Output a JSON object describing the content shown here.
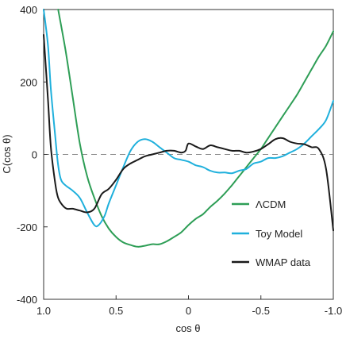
{
  "chart_data": {
    "type": "line",
    "title": "",
    "xlabel": "cos θ",
    "ylabel": "C(cos θ)",
    "xlim": [
      1.0,
      -1.0
    ],
    "ylim": [
      -400,
      400
    ],
    "x_reversed": true,
    "xticks": [
      {
        "value": 1.0,
        "label": "1.0"
      },
      {
        "value": 0.5,
        "label": "0.5"
      },
      {
        "value": 0.0,
        "label": "0"
      },
      {
        "value": -0.5,
        "label": "-0.5"
      },
      {
        "value": -1.0,
        "label": "-1.0"
      }
    ],
    "yticks": [
      {
        "value": 400,
        "label": "400"
      },
      {
        "value": 200,
        "label": "200"
      },
      {
        "value": 0,
        "label": "0"
      },
      {
        "value": -200,
        "label": "-200"
      },
      {
        "value": -400,
        "label": "-400"
      }
    ],
    "zero_line": {
      "style": "dashed"
    },
    "legend_position": "lower-right",
    "grid": false,
    "series": [
      {
        "name": "ΛCDM",
        "color": "#2e9e56",
        "points": [
          [
            0.9,
            400
          ],
          [
            0.85,
            290
          ],
          [
            0.8,
            160
          ],
          [
            0.75,
            30
          ],
          [
            0.7,
            -60
          ],
          [
            0.65,
            -120
          ],
          [
            0.6,
            -170
          ],
          [
            0.55,
            -205
          ],
          [
            0.5,
            -228
          ],
          [
            0.45,
            -243
          ],
          [
            0.4,
            -250
          ],
          [
            0.35,
            -255
          ],
          [
            0.3,
            -252
          ],
          [
            0.25,
            -248
          ],
          [
            0.2,
            -248
          ],
          [
            0.15,
            -240
          ],
          [
            0.1,
            -228
          ],
          [
            0.05,
            -215
          ],
          [
            0.0,
            -195
          ],
          [
            -0.05,
            -178
          ],
          [
            -0.1,
            -165
          ],
          [
            -0.15,
            -145
          ],
          [
            -0.2,
            -128
          ],
          [
            -0.25,
            -108
          ],
          [
            -0.3,
            -85
          ],
          [
            -0.35,
            -60
          ],
          [
            -0.4,
            -35
          ],
          [
            -0.45,
            -10
          ],
          [
            -0.5,
            15
          ],
          [
            -0.55,
            45
          ],
          [
            -0.6,
            75
          ],
          [
            -0.65,
            105
          ],
          [
            -0.7,
            135
          ],
          [
            -0.75,
            165
          ],
          [
            -0.8,
            200
          ],
          [
            -0.85,
            235
          ],
          [
            -0.9,
            270
          ],
          [
            -0.95,
            300
          ],
          [
            -1.0,
            340
          ]
        ]
      },
      {
        "name": "Toy Model",
        "color": "#1fb0dc",
        "points": [
          [
            1.0,
            400
          ],
          [
            0.97,
            300
          ],
          [
            0.95,
            180
          ],
          [
            0.92,
            50
          ],
          [
            0.9,
            -30
          ],
          [
            0.88,
            -70
          ],
          [
            0.85,
            -85
          ],
          [
            0.8,
            -100
          ],
          [
            0.75,
            -120
          ],
          [
            0.7,
            -160
          ],
          [
            0.65,
            -195
          ],
          [
            0.62,
            -195
          ],
          [
            0.58,
            -170
          ],
          [
            0.55,
            -135
          ],
          [
            0.5,
            -85
          ],
          [
            0.45,
            -35
          ],
          [
            0.4,
            10
          ],
          [
            0.35,
            35
          ],
          [
            0.3,
            42
          ],
          [
            0.25,
            35
          ],
          [
            0.2,
            20
          ],
          [
            0.15,
            5
          ],
          [
            0.1,
            -10
          ],
          [
            0.05,
            -15
          ],
          [
            0.0,
            -20
          ],
          [
            -0.05,
            -30
          ],
          [
            -0.1,
            -35
          ],
          [
            -0.15,
            -45
          ],
          [
            -0.2,
            -50
          ],
          [
            -0.25,
            -50
          ],
          [
            -0.3,
            -52
          ],
          [
            -0.35,
            -45
          ],
          [
            -0.4,
            -40
          ],
          [
            -0.45,
            -25
          ],
          [
            -0.5,
            -20
          ],
          [
            -0.55,
            -10
          ],
          [
            -0.6,
            -10
          ],
          [
            -0.65,
            -5
          ],
          [
            -0.7,
            5
          ],
          [
            -0.75,
            15
          ],
          [
            -0.8,
            30
          ],
          [
            -0.85,
            50
          ],
          [
            -0.9,
            70
          ],
          [
            -0.95,
            95
          ],
          [
            -1.0,
            148
          ]
        ]
      },
      {
        "name": "WMAP data",
        "color": "#1a1a1a",
        "points": [
          [
            1.0,
            330
          ],
          [
            0.97,
            150
          ],
          [
            0.95,
            20
          ],
          [
            0.92,
            -80
          ],
          [
            0.9,
            -120
          ],
          [
            0.87,
            -140
          ],
          [
            0.84,
            -150
          ],
          [
            0.8,
            -150
          ],
          [
            0.75,
            -155
          ],
          [
            0.7,
            -160
          ],
          [
            0.65,
            -150
          ],
          [
            0.6,
            -110
          ],
          [
            0.55,
            -95
          ],
          [
            0.5,
            -70
          ],
          [
            0.45,
            -40
          ],
          [
            0.4,
            -25
          ],
          [
            0.35,
            -15
          ],
          [
            0.3,
            -5
          ],
          [
            0.25,
            0
          ],
          [
            0.2,
            5
          ],
          [
            0.15,
            10
          ],
          [
            0.1,
            10
          ],
          [
            0.05,
            5
          ],
          [
            0.02,
            10
          ],
          [
            0.0,
            30
          ],
          [
            -0.05,
            22
          ],
          [
            -0.1,
            15
          ],
          [
            -0.15,
            25
          ],
          [
            -0.2,
            20
          ],
          [
            -0.25,
            15
          ],
          [
            -0.3,
            10
          ],
          [
            -0.35,
            10
          ],
          [
            -0.4,
            5
          ],
          [
            -0.45,
            8
          ],
          [
            -0.5,
            15
          ],
          [
            -0.55,
            28
          ],
          [
            -0.6,
            42
          ],
          [
            -0.65,
            45
          ],
          [
            -0.7,
            35
          ],
          [
            -0.75,
            30
          ],
          [
            -0.8,
            28
          ],
          [
            -0.85,
            20
          ],
          [
            -0.9,
            15
          ],
          [
            -0.95,
            -40
          ],
          [
            -1.0,
            -210
          ]
        ]
      }
    ]
  }
}
